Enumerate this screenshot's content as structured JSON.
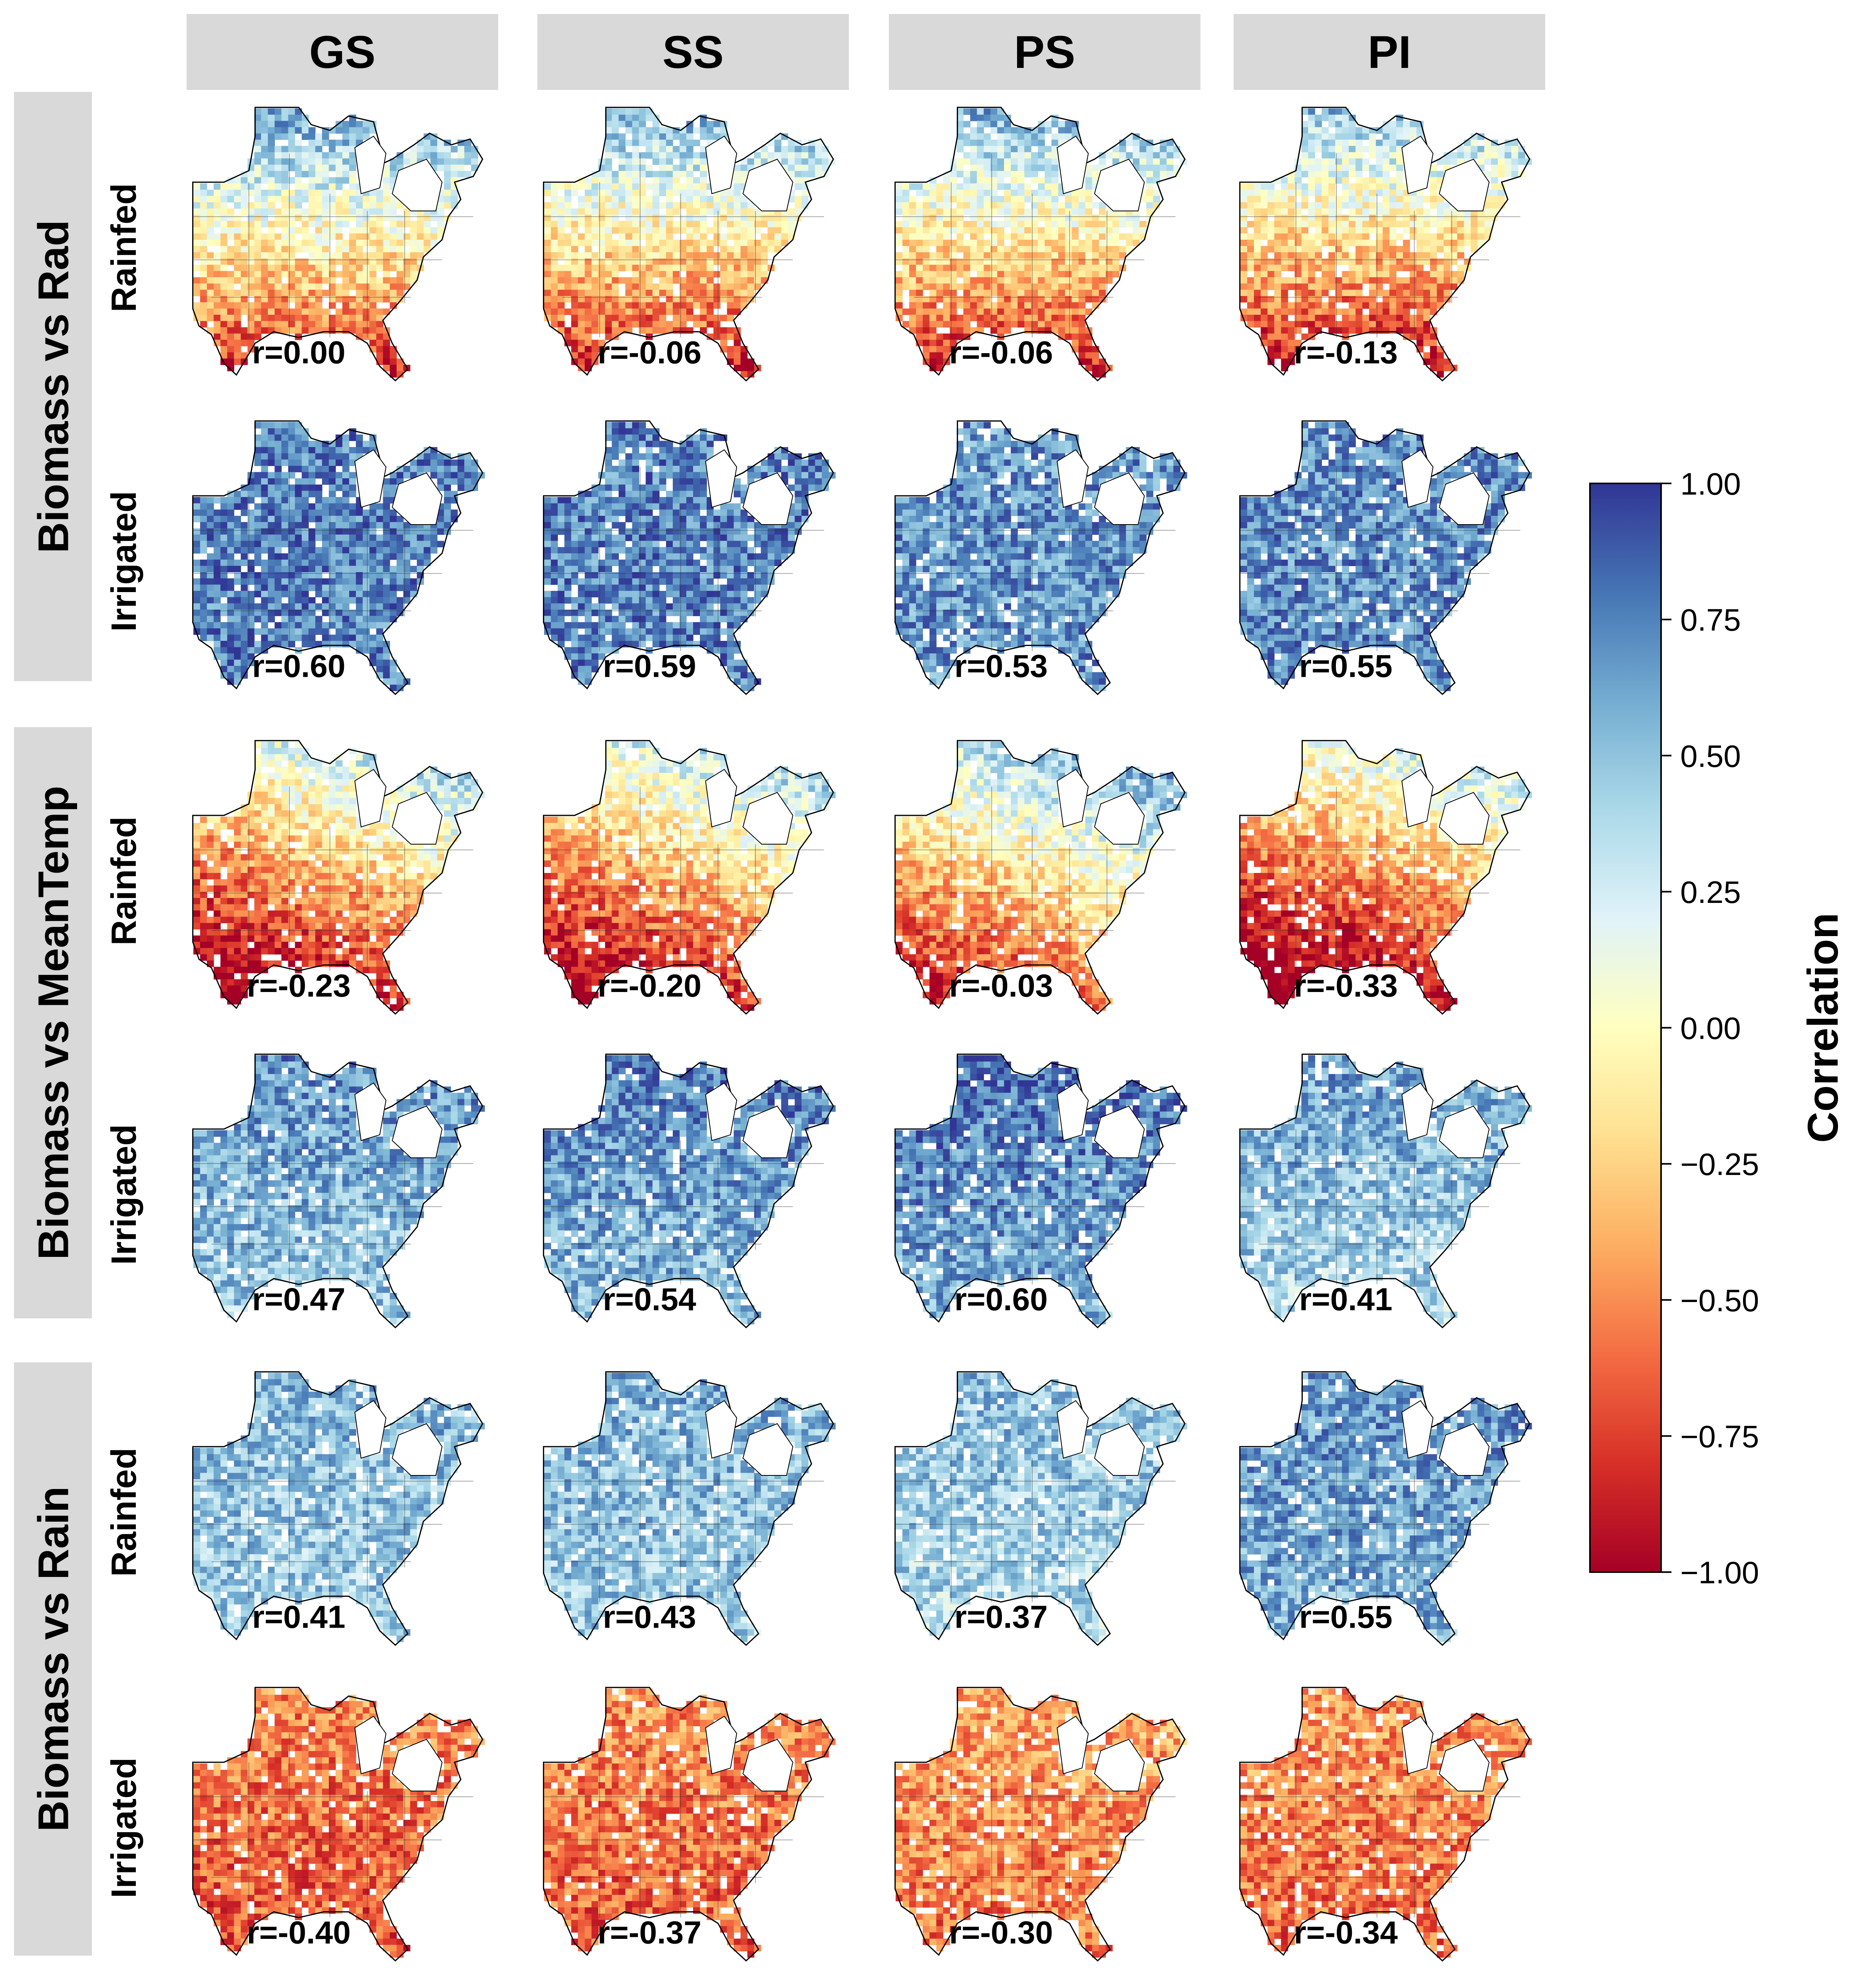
{
  "figure": {
    "columns": [
      "GS",
      "SS",
      "PS",
      "PI"
    ],
    "row_groups": [
      "Biomass vs Rad",
      "Biomass vs MeanTemp",
      "Biomass vs Rain"
    ],
    "conditions": [
      "Rainfed",
      "Irrigated"
    ]
  },
  "colorbar": {
    "label": "Correlation",
    "cmap": "RdYlBu",
    "vmin": -1.0,
    "vmax": 1.0,
    "ticks": [
      "1.00",
      "0.75",
      "0.50",
      "0.25",
      "0.00",
      "−0.25",
      "−0.50",
      "−0.75",
      "−1.00"
    ],
    "colors": [
      "#a50026",
      "#d73027",
      "#f46d43",
      "#fdae61",
      "#fee090",
      "#ffffbf",
      "#e0f3f8",
      "#abd9e9",
      "#74add1",
      "#4575b4",
      "#313695"
    ]
  },
  "chart_data": {
    "type": "heatmap",
    "panel_type": "map",
    "region": "Eastern United States",
    "columns": [
      "GS",
      "SS",
      "PS",
      "PI"
    ],
    "rows": [
      {
        "group": "Biomass vs Rad",
        "condition": "Rainfed",
        "values": [
          0.0,
          -0.06,
          -0.06,
          -0.13
        ],
        "labels": [
          "r=0.00",
          "r=-0.06",
          "r=-0.06",
          "r=-0.13"
        ]
      },
      {
        "group": "Biomass vs Rad",
        "condition": "Irrigated",
        "values": [
          0.6,
          0.59,
          0.53,
          0.55
        ],
        "labels": [
          "r=0.60",
          "r=0.59",
          "r=0.53",
          "r=0.55"
        ]
      },
      {
        "group": "Biomass vs MeanTemp",
        "condition": "Rainfed",
        "values": [
          -0.23,
          -0.2,
          -0.03,
          -0.33
        ],
        "labels": [
          "r=-0.23",
          "r=-0.20",
          "r=-0.03",
          "r=-0.33"
        ]
      },
      {
        "group": "Biomass vs MeanTemp",
        "condition": "Irrigated",
        "values": [
          0.47,
          0.54,
          0.6,
          0.41
        ],
        "labels": [
          "r=0.47",
          "r=0.54",
          "r=0.60",
          "r=0.41"
        ]
      },
      {
        "group": "Biomass vs Rain",
        "condition": "Rainfed",
        "values": [
          0.41,
          0.43,
          0.37,
          0.55
        ],
        "labels": [
          "r=0.41",
          "r=0.43",
          "r=0.37",
          "r=0.55"
        ]
      },
      {
        "group": "Biomass vs Rain",
        "condition": "Irrigated",
        "values": [
          -0.4,
          -0.37,
          -0.3,
          -0.34
        ],
        "labels": [
          "r=-0.40",
          "r=-0.37",
          "r=-0.30",
          "r=-0.34"
        ]
      }
    ]
  }
}
